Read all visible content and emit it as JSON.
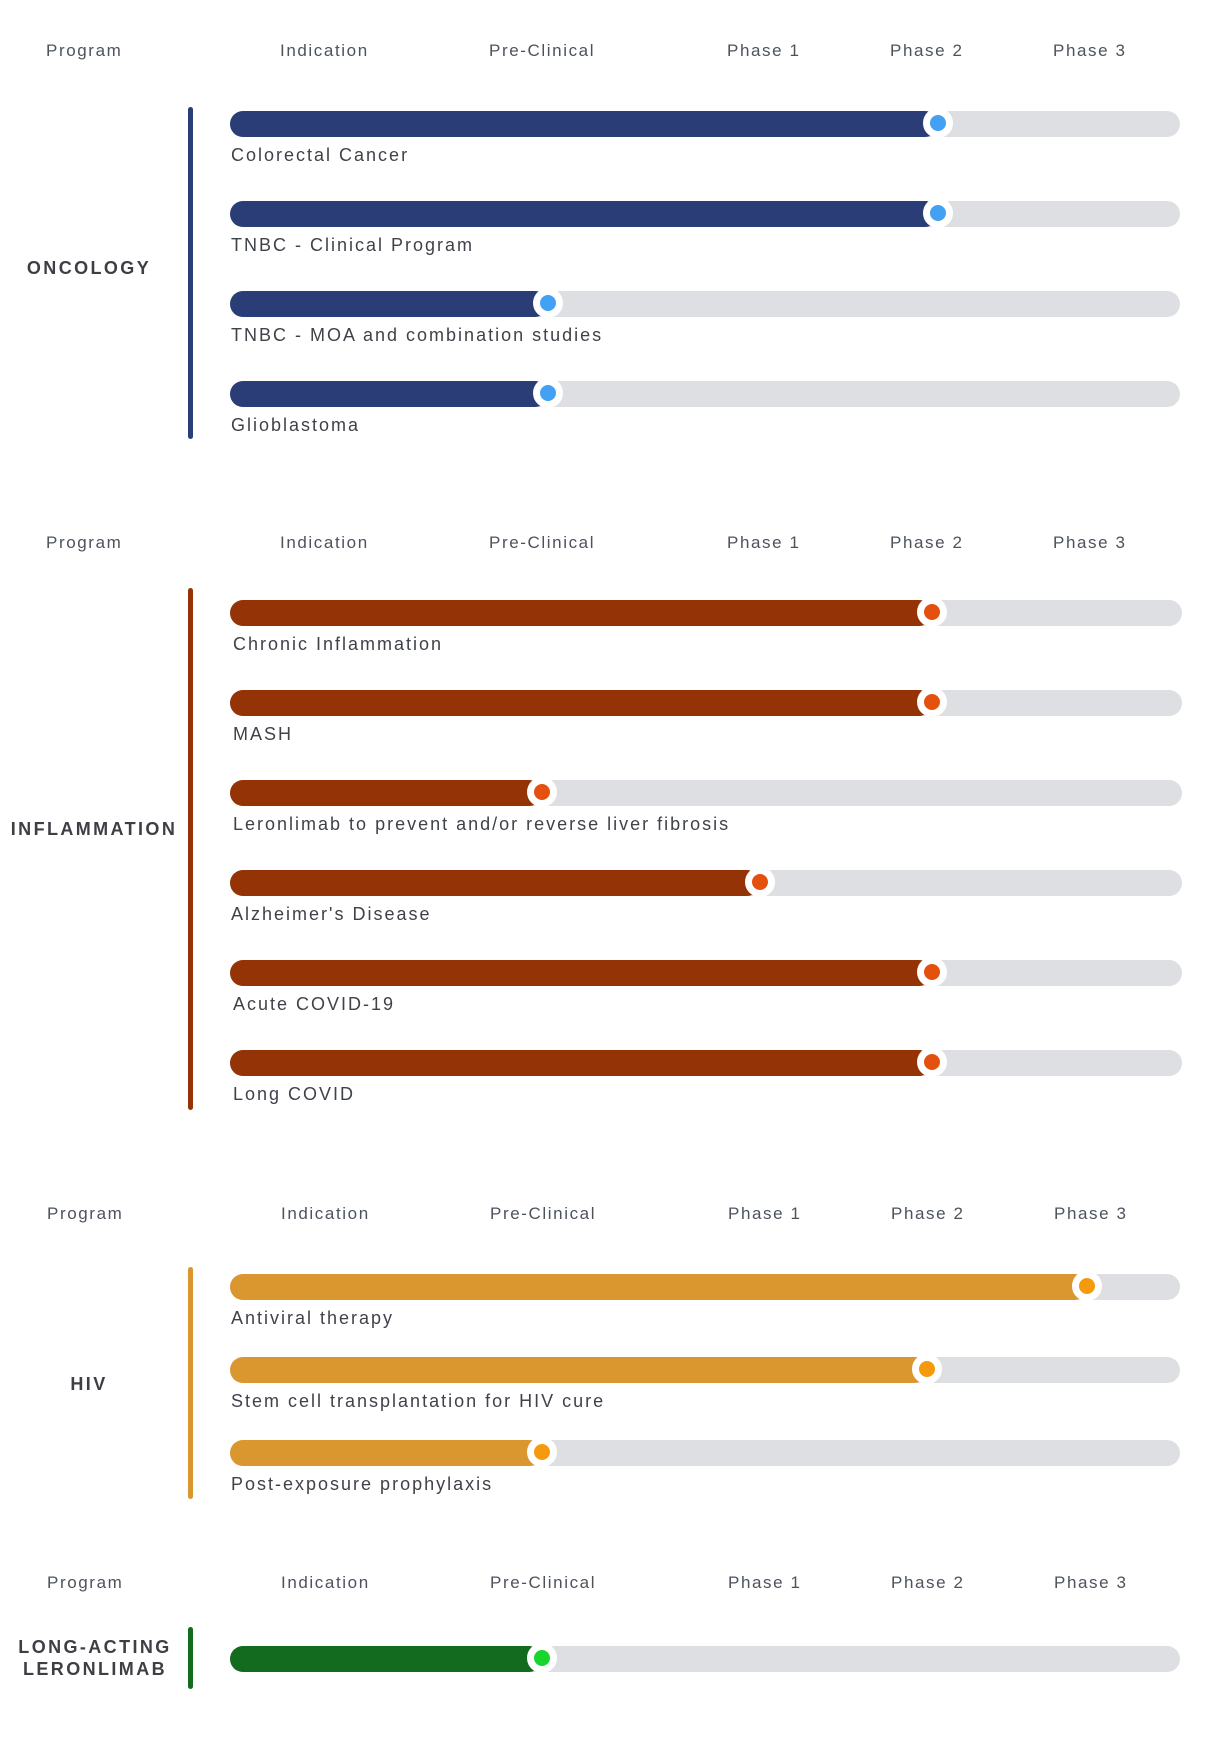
{
  "header": {
    "program": "Program",
    "indication": "Indication",
    "pre_clinical": "Pre-Clinical",
    "phase1": "Phase 1",
    "phase2": "Phase 2",
    "phase3": "Phase 3"
  },
  "colors": {
    "track": "#dedfe3",
    "oncology_bar": "#2a3d77",
    "oncology_dot": "#42a1f2",
    "inflammation_bar": "#933306",
    "inflammation_dot": "#e4510f",
    "hiv_bar": "#db972f",
    "hiv_dot": "#f59a0d",
    "long_acting_bar": "#126b1e",
    "long_acting_dot": "#17d52d"
  },
  "sections": [
    {
      "program": "ONCOLOGY",
      "items": [
        {
          "indication": "Colorectal Cancer",
          "progress": 0.745
        },
        {
          "indication": "TNBC - Clinical Program",
          "progress": 0.745
        },
        {
          "indication": "TNBC - MOA and combination studies",
          "progress": 0.335
        },
        {
          "indication": "Glioblastoma",
          "progress": 0.335
        }
      ]
    },
    {
      "program": "INFLAMMATION",
      "items": [
        {
          "indication": "Chronic Inflammation",
          "progress": 0.737
        },
        {
          "indication": "MASH",
          "progress": 0.737
        },
        {
          "indication": "Leronlimab to prevent and/or reverse liver fibrosis",
          "progress": 0.328
        },
        {
          "indication": "Alzheimer's Disease",
          "progress": 0.557
        },
        {
          "indication": "Acute COVID-19",
          "progress": 0.737
        },
        {
          "indication": "Long COVID",
          "progress": 0.737
        }
      ]
    },
    {
      "program": "HIV",
      "items": [
        {
          "indication": "Antiviral therapy",
          "progress": 0.902
        },
        {
          "indication": "Stem cell transplantation for HIV cure",
          "progress": 0.734
        },
        {
          "indication": "Post-exposure prophylaxis",
          "progress": 0.328
        }
      ]
    },
    {
      "program": "LONG-ACTING\nLERONLIMAB",
      "items": [
        {
          "indication": "",
          "progress": 0.328
        }
      ]
    }
  ]
}
